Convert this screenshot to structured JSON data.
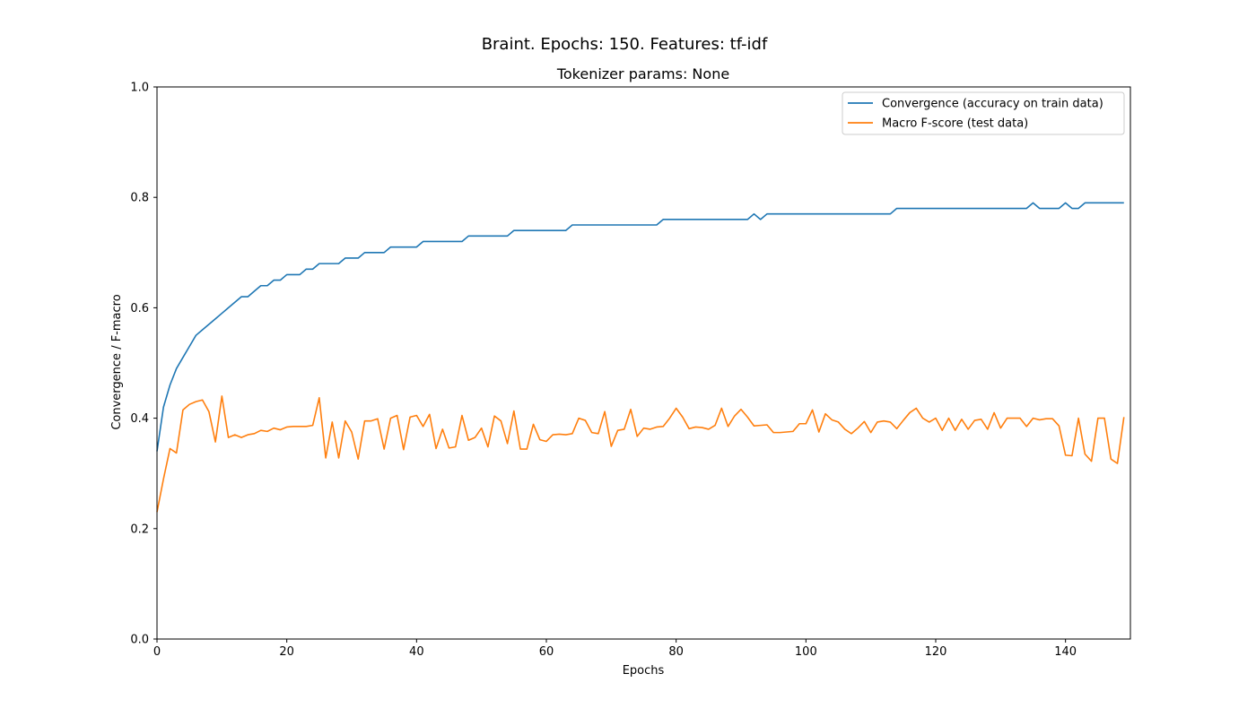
{
  "chart_data": {
    "type": "line",
    "title": "Braint. Epochs: 150. Features: tf-idf",
    "subtitle": "Tokenizer params: None",
    "xlabel": "Epochs",
    "ylabel": "Convergence / F-macro",
    "xlim": [
      0,
      150
    ],
    "ylim": [
      0.0,
      1.0
    ],
    "x_ticks": [
      0,
      20,
      40,
      60,
      80,
      100,
      120,
      140
    ],
    "y_ticks": [
      0.0,
      0.2,
      0.4,
      0.6,
      0.8,
      1.0
    ],
    "grid": false,
    "legend_position": "top-right",
    "series": [
      {
        "name": "Convergence (accuracy on train data)",
        "color": "#1f77b4",
        "values": [
          0.34,
          0.42,
          0.46,
          0.49,
          0.51,
          0.53,
          0.55,
          0.56,
          0.57,
          0.58,
          0.59,
          0.6,
          0.61,
          0.62,
          0.62,
          0.63,
          0.64,
          0.64,
          0.65,
          0.65,
          0.66,
          0.66,
          0.66,
          0.67,
          0.67,
          0.68,
          0.68,
          0.68,
          0.68,
          0.69,
          0.69,
          0.69,
          0.7,
          0.7,
          0.7,
          0.7,
          0.71,
          0.71,
          0.71,
          0.71,
          0.71,
          0.72,
          0.72,
          0.72,
          0.72,
          0.72,
          0.72,
          0.72,
          0.73,
          0.73,
          0.73,
          0.73,
          0.73,
          0.73,
          0.73,
          0.74,
          0.74,
          0.74,
          0.74,
          0.74,
          0.74,
          0.74,
          0.74,
          0.74,
          0.75,
          0.75,
          0.75,
          0.75,
          0.75,
          0.75,
          0.75,
          0.75,
          0.75,
          0.75,
          0.75,
          0.75,
          0.75,
          0.75,
          0.76,
          0.76,
          0.76,
          0.76,
          0.76,
          0.76,
          0.76,
          0.76,
          0.76,
          0.76,
          0.76,
          0.76,
          0.76,
          0.76,
          0.77,
          0.76,
          0.77,
          0.77,
          0.77,
          0.77,
          0.77,
          0.77,
          0.77,
          0.77,
          0.77,
          0.77,
          0.77,
          0.77,
          0.77,
          0.77,
          0.77,
          0.77,
          0.77,
          0.77,
          0.77,
          0.77,
          0.78,
          0.78,
          0.78,
          0.78,
          0.78,
          0.78,
          0.78,
          0.78,
          0.78,
          0.78,
          0.78,
          0.78,
          0.78,
          0.78,
          0.78,
          0.78,
          0.78,
          0.78,
          0.78,
          0.78,
          0.78,
          0.79,
          0.78,
          0.78,
          0.78,
          0.78,
          0.79,
          0.78,
          0.78,
          0.79,
          0.79,
          0.79,
          0.79,
          0.79,
          0.79,
          0.79
        ]
      },
      {
        "name": "Macro F-score (test data)",
        "color": "#ff7f0e",
        "values": [
          0.23,
          0.29,
          0.345,
          0.337,
          0.415,
          0.425,
          0.43,
          0.433,
          0.412,
          0.357,
          0.44,
          0.365,
          0.37,
          0.365,
          0.37,
          0.372,
          0.378,
          0.376,
          0.382,
          0.379,
          0.384,
          0.385,
          0.385,
          0.385,
          0.387,
          0.437,
          0.328,
          0.393,
          0.328,
          0.395,
          0.375,
          0.326,
          0.395,
          0.395,
          0.399,
          0.344,
          0.4,
          0.405,
          0.343,
          0.402,
          0.405,
          0.385,
          0.407,
          0.345,
          0.38,
          0.346,
          0.348,
          0.405,
          0.36,
          0.365,
          0.382,
          0.348,
          0.404,
          0.395,
          0.354,
          0.413,
          0.344,
          0.344,
          0.389,
          0.361,
          0.358,
          0.37,
          0.371,
          0.37,
          0.372,
          0.4,
          0.396,
          0.374,
          0.372,
          0.412,
          0.349,
          0.378,
          0.38,
          0.416,
          0.367,
          0.382,
          0.38,
          0.384,
          0.385,
          0.4,
          0.418,
          0.402,
          0.381,
          0.384,
          0.383,
          0.38,
          0.387,
          0.418,
          0.385,
          0.404,
          0.416,
          0.402,
          0.386,
          0.387,
          0.388,
          0.374,
          0.374,
          0.375,
          0.376,
          0.39,
          0.39,
          0.415,
          0.375,
          0.408,
          0.397,
          0.393,
          0.38,
          0.372,
          0.382,
          0.394,
          0.374,
          0.393,
          0.395,
          0.393,
          0.381,
          0.396,
          0.41,
          0.418,
          0.4,
          0.393,
          0.4,
          0.378,
          0.4,
          0.378,
          0.398,
          0.38,
          0.396,
          0.398,
          0.38,
          0.41,
          0.382,
          0.4,
          0.4,
          0.4,
          0.385,
          0.4,
          0.397,
          0.399,
          0.399,
          0.386,
          0.333,
          0.332,
          0.4,
          0.335,
          0.322,
          0.4,
          0.4,
          0.326,
          0.318,
          0.402
        ]
      }
    ]
  }
}
